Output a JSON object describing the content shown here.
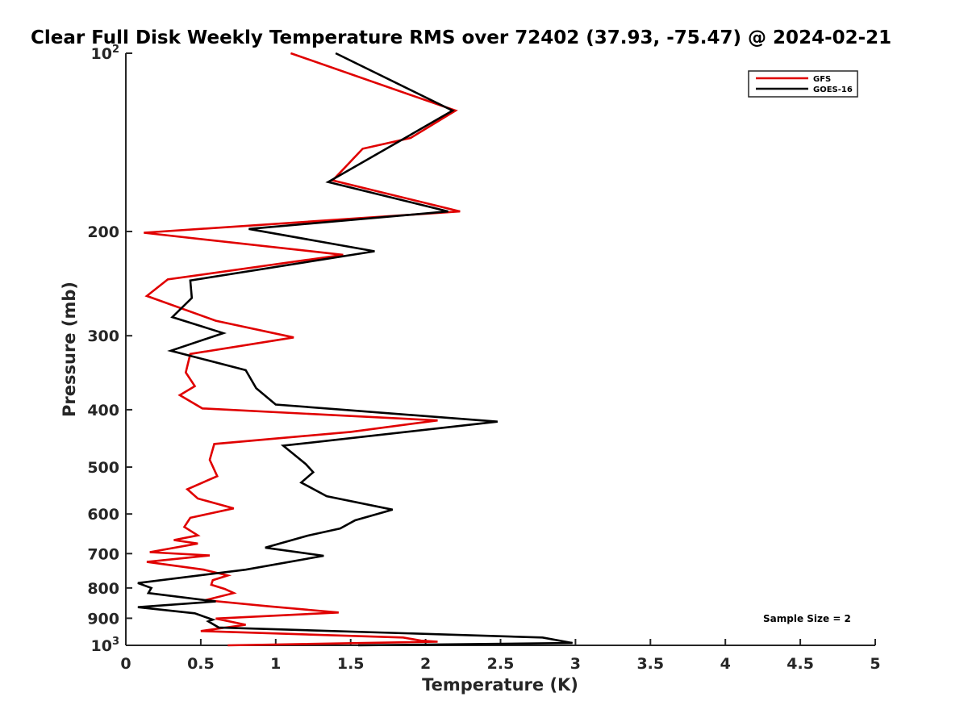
{
  "chart_data": {
    "type": "line",
    "title": "Clear Full Disk Weekly Temperature RMS over 72402 (37.93, -75.47) @ 2024-02-21",
    "xlabel": "Temperature (K)",
    "ylabel": "Pressure (mb)",
    "xlim": [
      0,
      5
    ],
    "ylim": [
      100,
      1000
    ],
    "yscale": "log",
    "y_reversed": true,
    "x_ticks": [
      0,
      0.5,
      1,
      1.5,
      2,
      2.5,
      3,
      3.5,
      4,
      4.5,
      5
    ],
    "x_tick_labels": [
      "0",
      "0.5",
      "1",
      "1.5",
      "2",
      "2.5",
      "3",
      "3.5",
      "4",
      "4.5",
      "5"
    ],
    "y_ticks": [
      100,
      200,
      300,
      400,
      500,
      600,
      700,
      800,
      900,
      1000
    ],
    "y_tick_labels": [
      {
        "base": "10",
        "exp": "2"
      },
      {
        "base": "200",
        "exp": ""
      },
      {
        "base": "300",
        "exp": ""
      },
      {
        "base": "400",
        "exp": ""
      },
      {
        "base": "500",
        "exp": ""
      },
      {
        "base": "600",
        "exp": ""
      },
      {
        "base": "700",
        "exp": ""
      },
      {
        "base": "800",
        "exp": ""
      },
      {
        "base": "900",
        "exp": ""
      },
      {
        "base": "10",
        "exp": "3"
      }
    ],
    "legend_position": "top-right",
    "annotation": "Sample Size = 2",
    "series": [
      {
        "name": "GFS",
        "color": "#e00000",
        "points": [
          [
            1.1,
            100
          ],
          [
            2.2,
            125
          ],
          [
            1.9,
            139
          ],
          [
            1.58,
            145
          ],
          [
            1.38,
            164
          ],
          [
            2.23,
            185
          ],
          [
            0.12,
            201
          ],
          [
            1.45,
            219
          ],
          [
            0.28,
            241
          ],
          [
            0.14,
            257
          ],
          [
            0.6,
            283
          ],
          [
            1.12,
            302
          ],
          [
            0.43,
            322
          ],
          [
            0.4,
            346
          ],
          [
            0.46,
            365
          ],
          [
            0.36,
            378
          ],
          [
            0.51,
            398
          ],
          [
            2.08,
            417
          ],
          [
            1.5,
            436
          ],
          [
            0.59,
            457
          ],
          [
            0.56,
            486
          ],
          [
            0.61,
            518
          ],
          [
            0.41,
            545
          ],
          [
            0.48,
            565
          ],
          [
            0.72,
            587
          ],
          [
            0.43,
            609
          ],
          [
            0.39,
            631
          ],
          [
            0.48,
            652
          ],
          [
            0.32,
            664
          ],
          [
            0.48,
            673
          ],
          [
            0.16,
            696
          ],
          [
            0.56,
            705
          ],
          [
            0.14,
            723
          ],
          [
            0.52,
            745
          ],
          [
            0.68,
            762
          ],
          [
            0.58,
            776
          ],
          [
            0.57,
            790
          ],
          [
            0.66,
            803
          ],
          [
            0.72,
            816
          ],
          [
            0.53,
            839
          ],
          [
            0.95,
            859
          ],
          [
            1.42,
            880
          ],
          [
            0.6,
            901
          ],
          [
            0.8,
            923
          ],
          [
            0.5,
            946
          ],
          [
            1.85,
            970
          ],
          [
            1.97,
            982
          ],
          [
            2.08,
            986
          ],
          [
            0.68,
            1000
          ]
        ]
      },
      {
        "name": "GOES-16",
        "color": "#000000",
        "points": [
          [
            1.4,
            100
          ],
          [
            2.18,
            125
          ],
          [
            1.8,
            142
          ],
          [
            1.35,
            165
          ],
          [
            2.15,
            185
          ],
          [
            0.82,
            198
          ],
          [
            1.66,
            216
          ],
          [
            0.43,
            242
          ],
          [
            0.44,
            259
          ],
          [
            0.31,
            279
          ],
          [
            0.65,
            297
          ],
          [
            0.3,
            318
          ],
          [
            0.8,
            343
          ],
          [
            0.87,
            368
          ],
          [
            1.0,
            392
          ],
          [
            2.48,
            419
          ],
          [
            1.05,
            460
          ],
          [
            1.2,
            494
          ],
          [
            1.25,
            510
          ],
          [
            1.17,
            531
          ],
          [
            1.34,
            560
          ],
          [
            1.78,
            590
          ],
          [
            1.53,
            615
          ],
          [
            1.43,
            635
          ],
          [
            1.22,
            652
          ],
          [
            0.93,
            684
          ],
          [
            1.32,
            706
          ],
          [
            0.8,
            745
          ],
          [
            0.08,
            785
          ],
          [
            0.17,
            800
          ],
          [
            0.15,
            816
          ],
          [
            0.6,
            843
          ],
          [
            0.08,
            862
          ],
          [
            0.46,
            883
          ],
          [
            0.58,
            905
          ],
          [
            0.55,
            911
          ],
          [
            0.62,
            933
          ],
          [
            2.78,
            970
          ],
          [
            2.98,
            991
          ],
          [
            1.55,
            1000
          ]
        ]
      }
    ]
  }
}
